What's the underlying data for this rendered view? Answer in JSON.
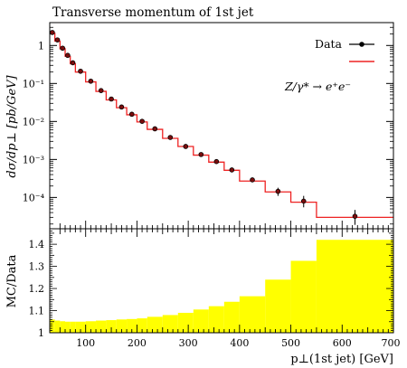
{
  "chart_data": [
    {
      "type": "line",
      "panel": "main",
      "title": "Transverse momentum of 1st jet",
      "ylabel": "dσ/dp⊥ [pb/GeV]",
      "yscale": "log",
      "ylim": [
        1.5e-05,
        4
      ],
      "xlim": [
        30,
        700
      ],
      "ytick_exponents": [
        -4,
        -3,
        -2,
        -1,
        0
      ],
      "ytick_labels": [
        "10⁻⁴",
        "10⁻³",
        "10⁻²",
        "10⁻¹",
        "1"
      ],
      "legend": {
        "placement": "top-right",
        "entries": [
          "Data",
          ""
        ],
        "process_label": "Z/γ* → e⁺e⁻"
      },
      "mc_bins": {
        "edges": [
          30,
          40,
          50,
          60,
          70,
          80,
          100,
          120,
          140,
          160,
          180,
          200,
          220,
          250,
          280,
          310,
          340,
          370,
          400,
          450,
          500,
          550,
          700
        ],
        "values": [
          2.1,
          1.3,
          0.82,
          0.52,
          0.33,
          0.2,
          0.11,
          0.062,
          0.037,
          0.023,
          0.015,
          0.0097,
          0.0062,
          0.0036,
          0.0022,
          0.0013,
          0.00085,
          0.00052,
          0.00027,
          0.00014,
          7.5e-05,
          3e-05
        ]
      },
      "data_points": {
        "x": [
          35,
          45,
          55,
          65,
          75,
          90,
          110,
          130,
          150,
          170,
          190,
          210,
          235,
          265,
          295,
          325,
          355,
          385,
          425,
          475,
          525,
          625
        ],
        "y": [
          2.2,
          1.4,
          0.85,
          0.55,
          0.35,
          0.21,
          0.115,
          0.065,
          0.039,
          0.024,
          0.0155,
          0.0101,
          0.0064,
          0.0038,
          0.0022,
          0.00135,
          0.00088,
          0.00053,
          0.00029,
          0.000145,
          8e-05,
          3.2e-05
        ],
        "err_low": [
          0,
          0,
          0,
          0,
          0,
          0,
          0,
          0,
          0,
          0,
          0,
          0,
          0,
          0,
          0,
          0,
          0,
          0,
          3e-05,
          3.5e-05,
          2.5e-05,
          1.3e-05
        ],
        "err_high": [
          0,
          0,
          0,
          0,
          0,
          0,
          0,
          0,
          0,
          0,
          0,
          0,
          0,
          0,
          0,
          0,
          0,
          0,
          3e-05,
          3.5e-05,
          3e-05,
          1.5e-05
        ]
      },
      "colors": {
        "mc": "#ee2222",
        "data": "#000000",
        "marker_fill": "#7a0d0d"
      }
    },
    {
      "type": "bar",
      "panel": "ratio",
      "ylabel": "MC/Data",
      "xlabel": "p⊥(1st jet) [GeV]",
      "ylim": [
        1,
        1.47
      ],
      "xlim": [
        30,
        700
      ],
      "yticks": [
        "1",
        "1.1",
        "1.2",
        "1.3",
        "1.4"
      ],
      "xticks": [
        "100",
        "200",
        "300",
        "400",
        "500",
        "600",
        "700"
      ],
      "bins": {
        "edges": [
          30,
          40,
          50,
          60,
          70,
          80,
          100,
          120,
          140,
          160,
          180,
          200,
          220,
          250,
          280,
          310,
          340,
          370,
          400,
          450,
          500,
          550,
          700
        ],
        "values": [
          1.06,
          1.055,
          1.052,
          1.05,
          1.05,
          1.05,
          1.052,
          1.055,
          1.057,
          1.06,
          1.062,
          1.065,
          1.072,
          1.08,
          1.09,
          1.105,
          1.12,
          1.14,
          1.165,
          1.24,
          1.325,
          1.42
        ]
      },
      "colors": {
        "band": "#ffff00"
      }
    }
  ]
}
